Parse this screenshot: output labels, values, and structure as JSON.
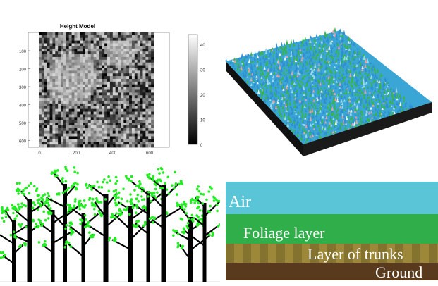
{
  "height_model": {
    "title": "Height Model",
    "y_ticks": [
      "100",
      "200",
      "300",
      "400",
      "500",
      "600"
    ],
    "x_ticks": [
      "0",
      "200",
      "400",
      "600"
    ],
    "colorbar_ticks": [
      "40",
      "30",
      "20",
      "10",
      "0"
    ],
    "colormap": "gray",
    "range": [
      0,
      43
    ]
  },
  "surface": {
    "colors": [
      "#2f8fd0",
      "#39b44a",
      "#9fd8e6",
      "#e8a0a0",
      "#f2f2f2"
    ]
  },
  "forest": {
    "foliage_color": "#22ee22",
    "trunk_color": "#000000"
  },
  "layers": [
    {
      "label": "Air",
      "color": "#5bc5d8"
    },
    {
      "label": "Foliage layer",
      "color": "#2fae4a"
    },
    {
      "label": "Layer of trunks",
      "color": "#9c8838"
    },
    {
      "label": "Ground",
      "color": "#5a3a1c"
    }
  ]
}
